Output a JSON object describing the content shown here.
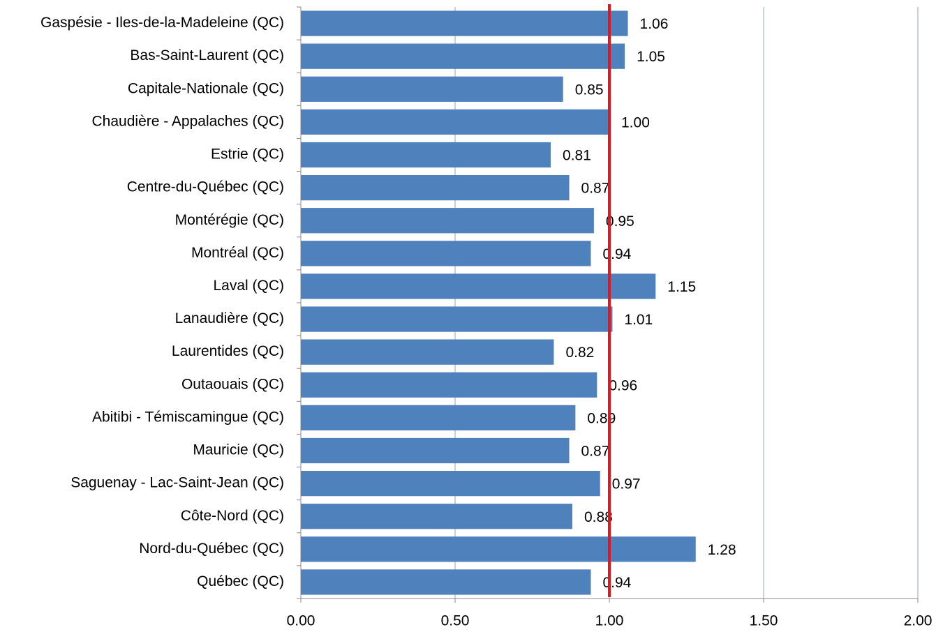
{
  "chart_data": {
    "type": "barh",
    "categories": [
      "Gaspésie - Iles-de-la-Madeleine (QC)",
      "Bas-Saint-Laurent (QC)",
      "Capitale-Nationale (QC)",
      "Chaudière - Appalaches (QC)",
      "Estrie (QC)",
      "Centre-du-Québec (QC)",
      "Montérégie (QC)",
      "Montréal (QC)",
      "Laval (QC)",
      "Lanaudière (QC)",
      "Laurentides (QC)",
      "Outaouais (QC)",
      "Abitibi - Témiscamingue (QC)",
      "Mauricie (QC)",
      "Saguenay - Lac-Saint-Jean (QC)",
      "Côte-Nord (QC)",
      "Nord-du-Québec (QC)",
      "Québec (QC)"
    ],
    "values": [
      1.06,
      1.05,
      0.85,
      1.0,
      0.81,
      0.87,
      0.95,
      0.94,
      1.15,
      1.01,
      0.82,
      0.96,
      0.89,
      0.87,
      0.97,
      0.88,
      1.28,
      0.94
    ],
    "value_labels": [
      "1.06",
      "1.05",
      "0.85",
      "1.00",
      "0.81",
      "0.87",
      "0.95",
      "0.94",
      "1.15",
      "1.01",
      "0.82",
      "0.96",
      "0.89",
      "0.87",
      "0.97",
      "0.88",
      "1.28",
      "0.94"
    ],
    "color": "#4f81bd",
    "xlim": [
      0,
      2
    ],
    "xticks": [
      {
        "value": 0,
        "label": "0.00"
      },
      {
        "value": 0.5,
        "label": "0.50"
      },
      {
        "value": 1,
        "label": "1.00"
      },
      {
        "value": 1.5,
        "label": "1.50"
      },
      {
        "value": 2,
        "label": "2.00"
      }
    ],
    "grid": true,
    "reference_line": {
      "value": 1,
      "color": "#e8141c"
    }
  }
}
